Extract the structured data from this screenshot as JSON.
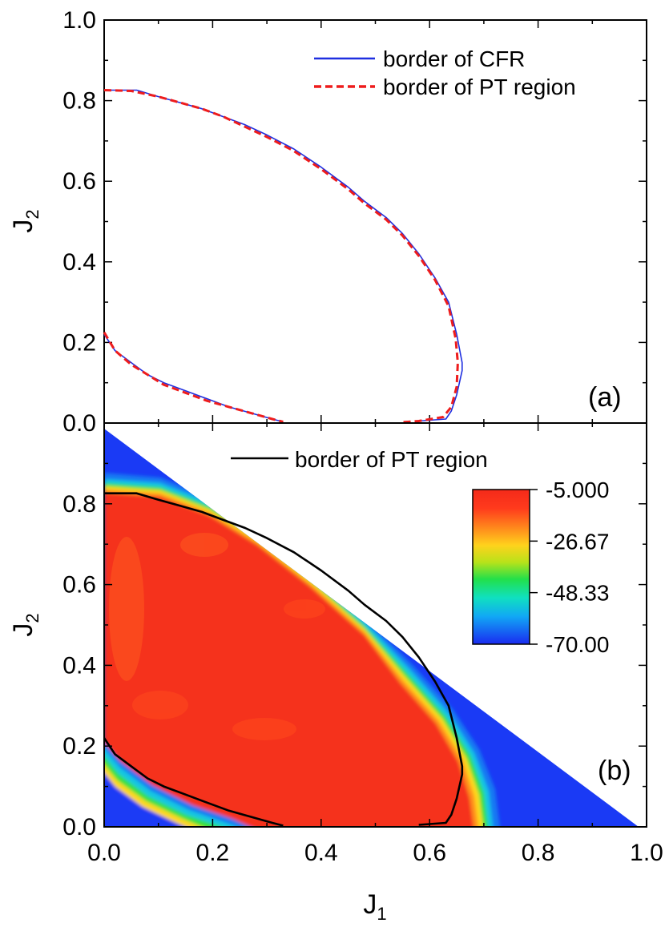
{
  "chart_data": [
    {
      "panel": "(a)",
      "type": "line",
      "ylabel": "J",
      "ylabel_subscript": "2",
      "xlim": [
        0.0,
        1.0
      ],
      "ylim": [
        0.0,
        1.0
      ],
      "yticks": [
        "0.0",
        "0.2",
        "0.4",
        "0.6",
        "0.8",
        "1.0"
      ],
      "legend_position": "top-right",
      "series": [
        {
          "name": "border of CFR",
          "style": "solid",
          "color": "#1f2fe0",
          "segments": [
            [
              [
                0.0,
                0.826
              ],
              [
                0.06,
                0.826
              ],
              [
                0.1,
                0.81
              ],
              [
                0.14,
                0.795
              ],
              [
                0.18,
                0.78
              ],
              [
                0.22,
                0.76
              ],
              [
                0.26,
                0.74
              ],
              [
                0.3,
                0.715
              ],
              [
                0.35,
                0.68
              ],
              [
                0.4,
                0.635
              ],
              [
                0.45,
                0.585
              ],
              [
                0.48,
                0.55
              ],
              [
                0.52,
                0.51
              ],
              [
                0.55,
                0.47
              ],
              [
                0.58,
                0.42
              ],
              [
                0.61,
                0.36
              ],
              [
                0.635,
                0.3
              ],
              [
                0.65,
                0.22
              ],
              [
                0.66,
                0.15
              ],
              [
                0.66,
                0.13
              ],
              [
                0.65,
                0.07
              ],
              [
                0.64,
                0.03
              ],
              [
                0.63,
                0.01
              ],
              [
                0.58,
                0.005
              ]
            ],
            [
              [
                0.0,
                0.22
              ],
              [
                0.02,
                0.18
              ],
              [
                0.05,
                0.15
              ],
              [
                0.08,
                0.12
              ],
              [
                0.11,
                0.1
              ],
              [
                0.15,
                0.08
              ],
              [
                0.19,
                0.06
              ],
              [
                0.23,
                0.04
              ],
              [
                0.27,
                0.025
              ],
              [
                0.31,
                0.01
              ],
              [
                0.33,
                0.003
              ]
            ]
          ]
        },
        {
          "name": "border of PT region",
          "style": "dashed",
          "color": "#ee1c1c",
          "segments": [
            [
              [
                0.0,
                0.826
              ],
              [
                0.05,
                0.824
              ],
              [
                0.1,
                0.81
              ],
              [
                0.14,
                0.795
              ],
              [
                0.18,
                0.78
              ],
              [
                0.22,
                0.76
              ],
              [
                0.26,
                0.735
              ],
              [
                0.3,
                0.71
              ],
              [
                0.35,
                0.675
              ],
              [
                0.4,
                0.63
              ],
              [
                0.45,
                0.58
              ],
              [
                0.48,
                0.545
              ],
              [
                0.52,
                0.505
              ],
              [
                0.55,
                0.465
              ],
              [
                0.58,
                0.415
              ],
              [
                0.61,
                0.355
              ],
              [
                0.635,
                0.29
              ],
              [
                0.648,
                0.21
              ],
              [
                0.652,
                0.15
              ],
              [
                0.65,
                0.09
              ],
              [
                0.64,
                0.04
              ],
              [
                0.625,
                0.015
              ],
              [
                0.58,
                0.005
              ],
              [
                0.55,
                0.002
              ]
            ],
            [
              [
                0.0,
                0.225
              ],
              [
                0.02,
                0.18
              ],
              [
                0.05,
                0.145
              ],
              [
                0.08,
                0.12
              ],
              [
                0.11,
                0.095
              ],
              [
                0.15,
                0.075
              ],
              [
                0.19,
                0.055
              ],
              [
                0.23,
                0.04
              ],
              [
                0.27,
                0.025
              ],
              [
                0.31,
                0.01
              ],
              [
                0.33,
                0.003
              ]
            ]
          ]
        }
      ]
    },
    {
      "panel": "(b)",
      "type": "heatmap",
      "xlabel": "J",
      "xlabel_subscript": "1",
      "ylabel": "J",
      "ylabel_subscript": "2",
      "xlim": [
        0.0,
        1.0
      ],
      "ylim": [
        0.0,
        1.0
      ],
      "xticks": [
        "0.0",
        "0.2",
        "0.4",
        "0.6",
        "0.8",
        "1.0"
      ],
      "yticks": [
        "0.0",
        "0.2",
        "0.4",
        "0.6",
        "0.8"
      ],
      "colorbar": {
        "ticks": [
          "-5.000",
          "-26.67",
          "-48.33",
          "-70.00"
        ],
        "range": [
          -70.0,
          -5.0
        ],
        "colors": [
          "#1a2bf0",
          "#11a8f5",
          "#10e0c0",
          "#22e04a",
          "#b8e21a",
          "#ffd21c",
          "#ff8a1c",
          "#ff3a1c",
          "#f42a1a"
        ]
      },
      "domain": "triangle J1 + J2 <= 0.985",
      "legend_position": "top-center",
      "series": [
        {
          "name": "border of PT region",
          "style": "solid",
          "color": "#000000",
          "segments": [
            [
              [
                0.0,
                0.826
              ],
              [
                0.06,
                0.826
              ],
              [
                0.1,
                0.81
              ],
              [
                0.14,
                0.795
              ],
              [
                0.18,
                0.78
              ],
              [
                0.22,
                0.76
              ],
              [
                0.26,
                0.74
              ],
              [
                0.3,
                0.715
              ],
              [
                0.35,
                0.68
              ],
              [
                0.4,
                0.635
              ],
              [
                0.45,
                0.585
              ],
              [
                0.48,
                0.55
              ],
              [
                0.52,
                0.51
              ],
              [
                0.55,
                0.47
              ],
              [
                0.58,
                0.42
              ],
              [
                0.61,
                0.36
              ],
              [
                0.635,
                0.3
              ],
              [
                0.65,
                0.22
              ],
              [
                0.66,
                0.15
              ],
              [
                0.66,
                0.13
              ],
              [
                0.65,
                0.07
              ],
              [
                0.64,
                0.03
              ],
              [
                0.63,
                0.01
              ],
              [
                0.58,
                0.005
              ]
            ],
            [
              [
                0.0,
                0.22
              ],
              [
                0.02,
                0.18
              ],
              [
                0.05,
                0.15
              ],
              [
                0.08,
                0.12
              ],
              [
                0.11,
                0.1
              ],
              [
                0.15,
                0.08
              ],
              [
                0.19,
                0.06
              ],
              [
                0.23,
                0.04
              ],
              [
                0.27,
                0.025
              ],
              [
                0.31,
                0.01
              ],
              [
                0.33,
                0.003
              ]
            ]
          ]
        }
      ]
    }
  ],
  "panel_labels": [
    "(a)",
    "(b)"
  ]
}
